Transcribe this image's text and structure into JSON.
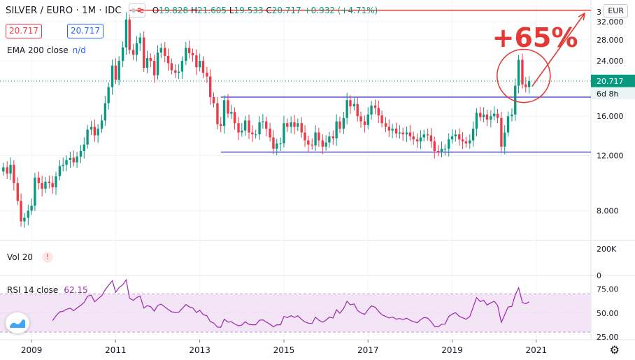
{
  "header": {
    "symbol": "SILVER / EURO · 1M · IDC",
    "ohlc": {
      "O": "19.828",
      "H": "21.605",
      "L": "19.533",
      "C": "20.717",
      "change": "+0.932 (+4.71%)"
    }
  },
  "price_boxes": {
    "bid": "20.717",
    "ask": "20.717"
  },
  "legend": {
    "ema_label": "EMA 200 close",
    "ema_value": "n/d",
    "vol_label": "Vol 20",
    "rsi_label": "RSI 14 close",
    "rsi_value": "62.15"
  },
  "currency_button": "EUR",
  "colors": {
    "up": "#089981",
    "down": "#f23645",
    "rsi": "#9c27b0",
    "rsi_band": "#f3e5f5",
    "channel": "#3b3bc4",
    "annotation": "#e53935",
    "last_price_bg": "#089981"
  },
  "chart_data": {
    "type": "candlestick",
    "title": "SILVER / EURO",
    "timeframe": "1M",
    "x_ticks": [
      "2009",
      "2011",
      "2013",
      "2015",
      "2017",
      "2019",
      "2021"
    ],
    "y_ticks": [
      "8.000",
      "12.000",
      "16.000",
      "20.000",
      "24.000",
      "28.000",
      "32.000"
    ],
    "y_scale": "log",
    "y_top_label": "3",
    "ylim": [
      6.5,
      36
    ],
    "x_range": [
      2008.3,
      2022.8
    ],
    "last_price": "20.717",
    "countdown": "6d 8h",
    "closes": [
      {
        "t": 2008.33,
        "c": 11.0
      },
      {
        "t": 2008.42,
        "c": 10.5
      },
      {
        "t": 2008.5,
        "c": 11.2
      },
      {
        "t": 2008.58,
        "c": 9.8
      },
      {
        "t": 2008.67,
        "c": 8.6
      },
      {
        "t": 2008.75,
        "c": 7.4
      },
      {
        "t": 2008.83,
        "c": 7.6
      },
      {
        "t": 2008.92,
        "c": 8.0
      },
      {
        "t": 2009.0,
        "c": 8.3
      },
      {
        "t": 2009.08,
        "c": 10.2
      },
      {
        "t": 2009.17,
        "c": 9.8
      },
      {
        "t": 2009.25,
        "c": 9.4
      },
      {
        "t": 2009.33,
        "c": 9.9
      },
      {
        "t": 2009.42,
        "c": 9.8
      },
      {
        "t": 2009.5,
        "c": 9.5
      },
      {
        "t": 2009.58,
        "c": 10.3
      },
      {
        "t": 2009.67,
        "c": 11.1
      },
      {
        "t": 2009.75,
        "c": 11.2
      },
      {
        "t": 2009.83,
        "c": 11.6
      },
      {
        "t": 2009.92,
        "c": 11.8
      },
      {
        "t": 2010.0,
        "c": 11.4
      },
      {
        "t": 2010.08,
        "c": 11.9
      },
      {
        "t": 2010.17,
        "c": 12.4
      },
      {
        "t": 2010.25,
        "c": 13.0
      },
      {
        "t": 2010.33,
        "c": 14.5
      },
      {
        "t": 2010.42,
        "c": 14.8
      },
      {
        "t": 2010.5,
        "c": 13.9
      },
      {
        "t": 2010.58,
        "c": 14.6
      },
      {
        "t": 2010.67,
        "c": 15.5
      },
      {
        "t": 2010.75,
        "c": 17.6
      },
      {
        "t": 2010.83,
        "c": 19.8
      },
      {
        "t": 2010.92,
        "c": 23.2
      },
      {
        "t": 2011.0,
        "c": 20.9
      },
      {
        "t": 2011.08,
        "c": 24.0
      },
      {
        "t": 2011.17,
        "c": 26.5
      },
      {
        "t": 2011.25,
        "c": 32.5
      },
      {
        "t": 2011.33,
        "c": 26.0
      },
      {
        "t": 2011.42,
        "c": 25.1
      },
      {
        "t": 2011.5,
        "c": 27.3
      },
      {
        "t": 2011.58,
        "c": 28.5
      },
      {
        "t": 2011.67,
        "c": 22.8
      },
      {
        "t": 2011.75,
        "c": 24.5
      },
      {
        "t": 2011.83,
        "c": 24.0
      },
      {
        "t": 2011.92,
        "c": 21.6
      },
      {
        "t": 2012.0,
        "c": 25.5
      },
      {
        "t": 2012.08,
        "c": 26.4
      },
      {
        "t": 2012.17,
        "c": 24.9
      },
      {
        "t": 2012.25,
        "c": 23.6
      },
      {
        "t": 2012.33,
        "c": 22.4
      },
      {
        "t": 2012.42,
        "c": 22.0
      },
      {
        "t": 2012.5,
        "c": 22.2
      },
      {
        "t": 2012.58,
        "c": 24.0
      },
      {
        "t": 2012.67,
        "c": 26.4
      },
      {
        "t": 2012.75,
        "c": 25.4
      },
      {
        "t": 2012.83,
        "c": 25.0
      },
      {
        "t": 2012.92,
        "c": 22.9
      },
      {
        "t": 2013.0,
        "c": 24.0
      },
      {
        "t": 2013.08,
        "c": 22.0
      },
      {
        "t": 2013.17,
        "c": 21.4
      },
      {
        "t": 2013.25,
        "c": 18.4
      },
      {
        "t": 2013.33,
        "c": 17.6
      },
      {
        "t": 2013.42,
        "c": 15.1
      },
      {
        "t": 2013.5,
        "c": 14.9
      },
      {
        "t": 2013.58,
        "c": 18.0
      },
      {
        "t": 2013.67,
        "c": 16.3
      },
      {
        "t": 2013.75,
        "c": 16.5
      },
      {
        "t": 2013.83,
        "c": 15.2
      },
      {
        "t": 2013.92,
        "c": 14.2
      },
      {
        "t": 2014.0,
        "c": 14.4
      },
      {
        "t": 2014.08,
        "c": 15.5
      },
      {
        "t": 2014.17,
        "c": 14.2
      },
      {
        "t": 2014.25,
        "c": 14.0
      },
      {
        "t": 2014.33,
        "c": 14.0
      },
      {
        "t": 2014.42,
        "c": 15.3
      },
      {
        "t": 2014.5,
        "c": 15.4
      },
      {
        "t": 2014.58,
        "c": 14.6
      },
      {
        "t": 2014.67,
        "c": 13.7
      },
      {
        "t": 2014.75,
        "c": 12.6
      },
      {
        "t": 2014.83,
        "c": 13.1
      },
      {
        "t": 2014.92,
        "c": 13.1
      },
      {
        "t": 2015.0,
        "c": 15.2
      },
      {
        "t": 2015.08,
        "c": 14.8
      },
      {
        "t": 2015.17,
        "c": 15.3
      },
      {
        "t": 2015.25,
        "c": 14.8
      },
      {
        "t": 2015.33,
        "c": 15.2
      },
      {
        "t": 2015.42,
        "c": 14.2
      },
      {
        "t": 2015.5,
        "c": 13.4
      },
      {
        "t": 2015.58,
        "c": 13.0
      },
      {
        "t": 2015.67,
        "c": 12.9
      },
      {
        "t": 2015.75,
        "c": 14.2
      },
      {
        "t": 2015.83,
        "c": 13.4
      },
      {
        "t": 2015.92,
        "c": 12.8
      },
      {
        "t": 2016.0,
        "c": 13.2
      },
      {
        "t": 2016.08,
        "c": 13.8
      },
      {
        "t": 2016.17,
        "c": 13.6
      },
      {
        "t": 2016.25,
        "c": 15.4
      },
      {
        "t": 2016.33,
        "c": 14.6
      },
      {
        "t": 2016.42,
        "c": 15.8
      },
      {
        "t": 2016.5,
        "c": 18.0
      },
      {
        "t": 2016.58,
        "c": 17.2
      },
      {
        "t": 2016.67,
        "c": 17.5
      },
      {
        "t": 2016.75,
        "c": 16.0
      },
      {
        "t": 2016.83,
        "c": 15.4
      },
      {
        "t": 2016.92,
        "c": 15.0
      },
      {
        "t": 2017.0,
        "c": 16.2
      },
      {
        "t": 2017.08,
        "c": 17.3
      },
      {
        "t": 2017.17,
        "c": 17.0
      },
      {
        "t": 2017.25,
        "c": 16.1
      },
      {
        "t": 2017.33,
        "c": 15.2
      },
      {
        "t": 2017.42,
        "c": 14.8
      },
      {
        "t": 2017.5,
        "c": 14.4
      },
      {
        "t": 2017.58,
        "c": 14.6
      },
      {
        "t": 2017.67,
        "c": 14.1
      },
      {
        "t": 2017.75,
        "c": 14.2
      },
      {
        "t": 2017.83,
        "c": 14.0
      },
      {
        "t": 2017.92,
        "c": 14.2
      },
      {
        "t": 2018.0,
        "c": 13.8
      },
      {
        "t": 2018.08,
        "c": 13.5
      },
      {
        "t": 2018.17,
        "c": 13.3
      },
      {
        "t": 2018.25,
        "c": 13.7
      },
      {
        "t": 2018.33,
        "c": 14.0
      },
      {
        "t": 2018.42,
        "c": 13.9
      },
      {
        "t": 2018.5,
        "c": 13.3
      },
      {
        "t": 2018.58,
        "c": 12.4
      },
      {
        "t": 2018.67,
        "c": 12.3
      },
      {
        "t": 2018.75,
        "c": 12.6
      },
      {
        "t": 2018.83,
        "c": 12.6
      },
      {
        "t": 2018.92,
        "c": 13.5
      },
      {
        "t": 2019.0,
        "c": 13.8
      },
      {
        "t": 2019.08,
        "c": 14.0
      },
      {
        "t": 2019.17,
        "c": 13.5
      },
      {
        "t": 2019.25,
        "c": 13.3
      },
      {
        "t": 2019.33,
        "c": 13.1
      },
      {
        "t": 2019.42,
        "c": 13.4
      },
      {
        "t": 2019.5,
        "c": 14.6
      },
      {
        "t": 2019.58,
        "c": 16.4
      },
      {
        "t": 2019.67,
        "c": 15.9
      },
      {
        "t": 2019.75,
        "c": 16.2
      },
      {
        "t": 2019.83,
        "c": 15.6
      },
      {
        "t": 2019.92,
        "c": 16.0
      },
      {
        "t": 2020.0,
        "c": 16.3
      },
      {
        "t": 2020.08,
        "c": 15.8
      },
      {
        "t": 2020.17,
        "c": 12.8
      },
      {
        "t": 2020.25,
        "c": 14.2
      },
      {
        "t": 2020.33,
        "c": 16.0
      },
      {
        "t": 2020.42,
        "c": 16.2
      },
      {
        "t": 2020.5,
        "c": 20.0
      },
      {
        "t": 2020.58,
        "c": 24.2
      },
      {
        "t": 2020.67,
        "c": 20.2
      },
      {
        "t": 2020.75,
        "c": 19.8
      },
      {
        "t": 2020.83,
        "c": 20.717
      }
    ],
    "rsi": {
      "ticks": [
        "75.00",
        "50.00",
        "25.00"
      ],
      "bands": [
        30,
        70
      ],
      "ylim": [
        22,
        88
      ],
      "last": "62.15"
    },
    "volume_axis": {
      "top_label": "200K",
      "bottom_label": "0"
    },
    "annotations": {
      "upper_target": 34.8,
      "channel_top": 18.4,
      "channel_bottom": 12.3,
      "channel_start": 2013.5,
      "label": "+65%"
    }
  }
}
